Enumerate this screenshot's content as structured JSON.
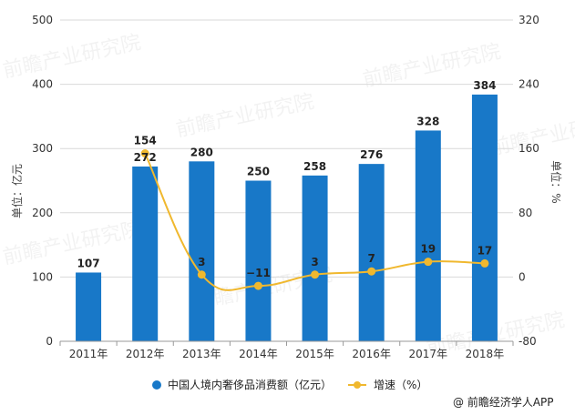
{
  "chart_data": {
    "type": "bar",
    "categories": [
      "2011年",
      "2012年",
      "2013年",
      "2014年",
      "2015年",
      "2016年",
      "2017年",
      "2018年"
    ],
    "series": [
      {
        "name": "中国人境内奢侈品消费额（亿元）",
        "type": "bar",
        "axis": "left",
        "values": [
          107,
          272,
          280,
          250,
          258,
          276,
          328,
          384
        ]
      },
      {
        "name": "增速（%）",
        "type": "line",
        "axis": "right",
        "values": [
          null,
          154,
          3,
          -11,
          3,
          7,
          19,
          17
        ]
      }
    ],
    "ylabel_left": "单位：亿元",
    "ylabel_right": "单位：%",
    "ylim_left": [
      0,
      500
    ],
    "ylim_right": [
      -80,
      320
    ],
    "yticks_left": [
      "0",
      "100",
      "200",
      "300",
      "400",
      "500"
    ],
    "yticks_right": [
      "-80",
      "0",
      "80",
      "160",
      "240",
      "320"
    ],
    "grid": true,
    "legend_position": "bottom"
  },
  "colors": {
    "bar": "#1878C8",
    "line": "#F0B82E",
    "grid": "#D9D9D9"
  },
  "source": {
    "icon": "copyright-icon",
    "text": "@ 前瞻经济学人APP"
  },
  "watermark": {
    "text": "前瞻产业研究院"
  }
}
